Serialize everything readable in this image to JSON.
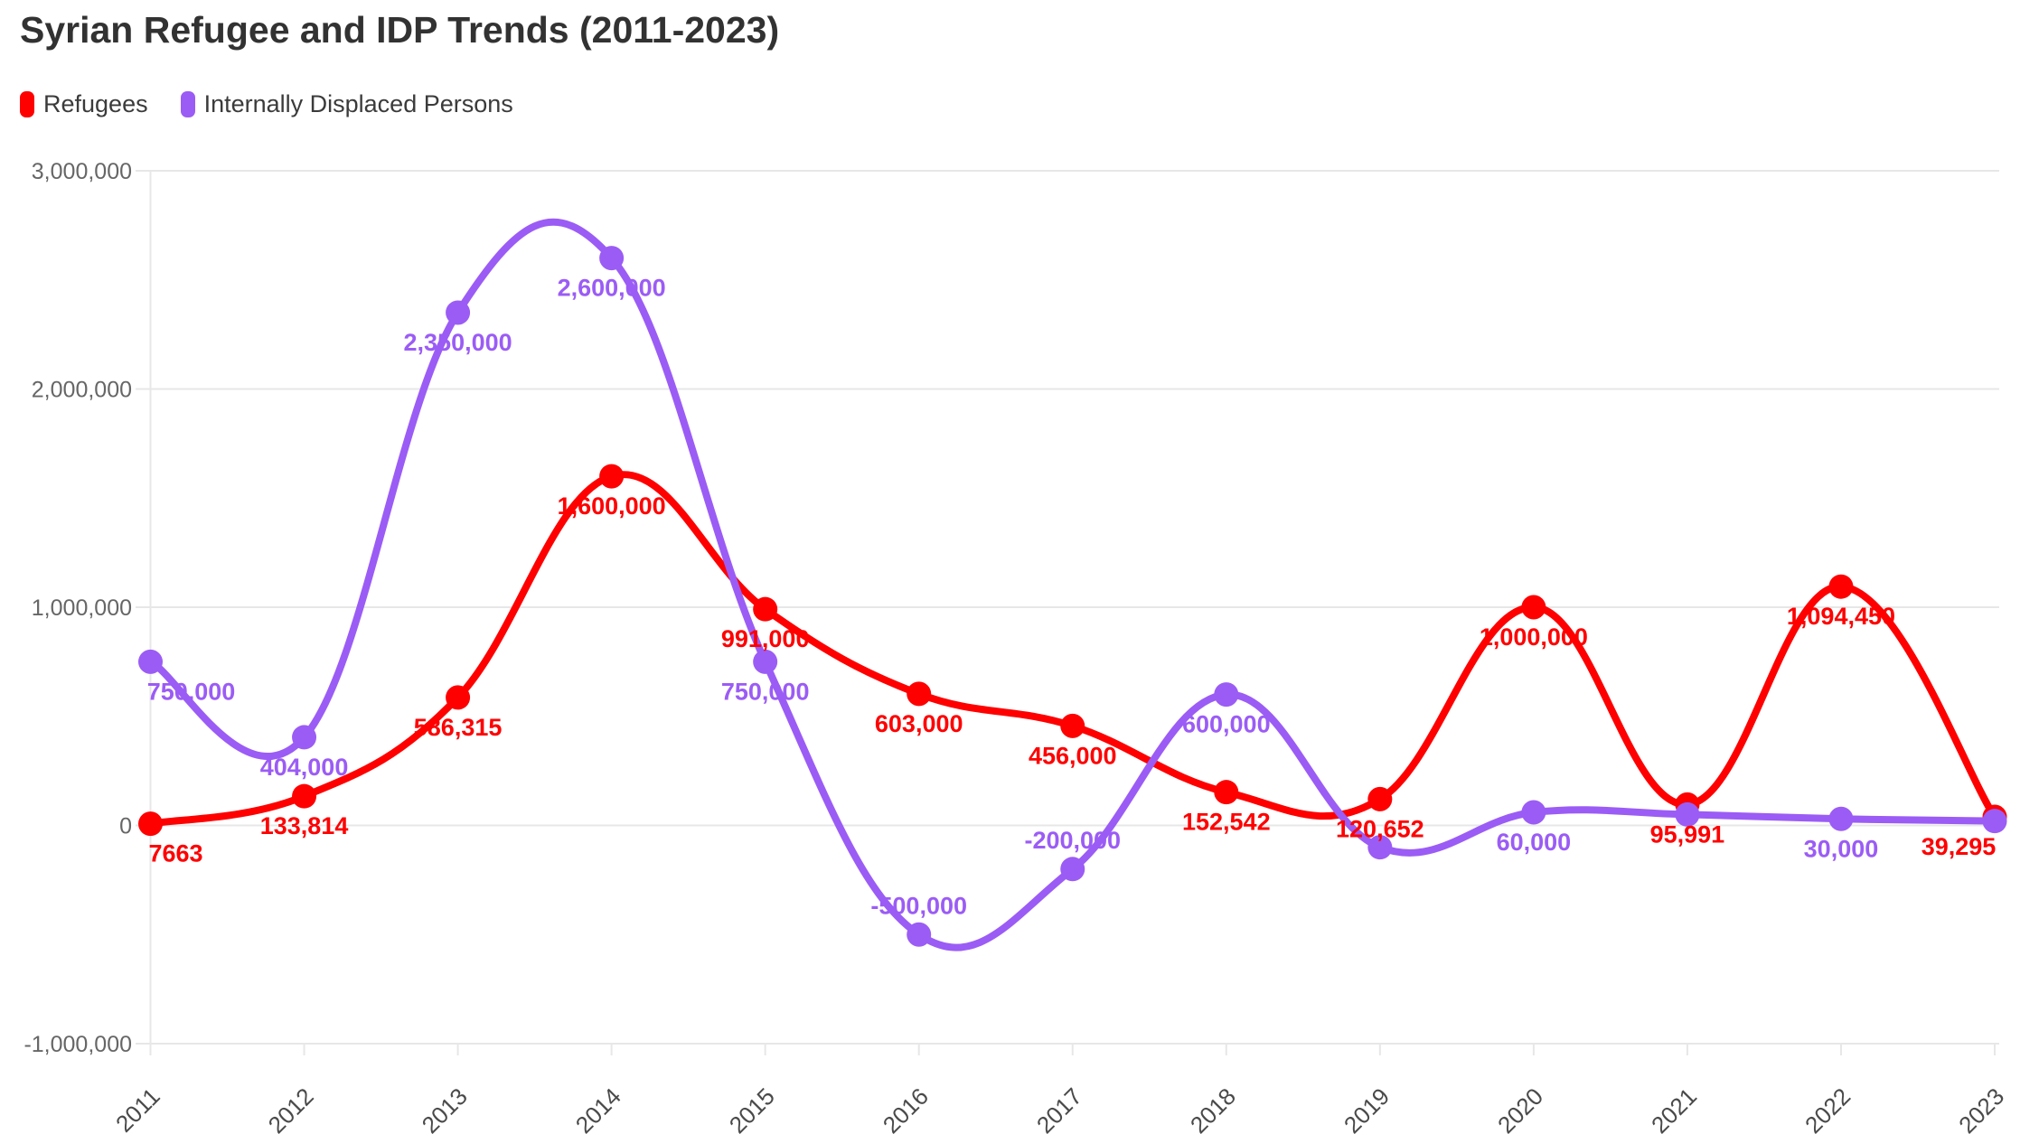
{
  "chart_data": {
    "type": "line",
    "title": "Syrian Refugee and IDP Trends (2011-2023)",
    "categories": [
      "2011",
      "2012",
      "2013",
      "2014",
      "2015",
      "2016",
      "2017",
      "2018",
      "2019",
      "2020",
      "2021",
      "2022",
      "2023"
    ],
    "xlabel": "",
    "ylabel": "",
    "ylim": [
      -1000000,
      3000000
    ],
    "grid": true,
    "legend_position": "top-left",
    "line_tension": 0.4,
    "y_ticks": {
      "values": [
        3000000,
        2000000,
        1000000,
        0,
        -1000000
      ],
      "labels": [
        "3,000,000",
        "2,000,000",
        "1,000,000",
        "0",
        "-1,000,000"
      ]
    },
    "series": [
      {
        "name": "Refugees",
        "color": "#fe0000",
        "values": [
          7663,
          133814,
          586315,
          1600000,
          991000,
          603000,
          456000,
          152542,
          120652,
          1000000,
          95991,
          1094450,
          39295
        ],
        "labels": [
          "7663",
          "133,814",
          "586,315",
          "1,600,000",
          "991,000",
          "603,000",
          "456,000",
          "152,542",
          "120,652",
          "1,000,000",
          "95,991",
          "1,094,450",
          "39,295"
        ],
        "label_side": [
          "below",
          "below",
          "below",
          "below",
          "below",
          "below",
          "below",
          "below",
          "below",
          "below",
          "below",
          "below",
          "below"
        ],
        "label_dx": [
          28,
          0,
          0,
          0,
          0,
          0,
          0,
          0,
          0,
          0,
          0,
          0,
          -40
        ]
      },
      {
        "name": "Internally Displaced Persons",
        "color": "#9b5cf5",
        "values": [
          750000,
          404000,
          2350000,
          2600000,
          750000,
          -500000,
          -200000,
          600000,
          -100000,
          60000,
          50000,
          30000,
          20000
        ],
        "labels": [
          "750,000",
          "404,000",
          "2,350,000",
          "2,600,000",
          "750,000",
          "-500,000",
          "-200,000",
          "600,000",
          "",
          "60,000",
          "",
          "30,000",
          ""
        ],
        "label_side": [
          "below",
          "below",
          "below",
          "below",
          "below",
          "above",
          "above",
          "below",
          "below",
          "below",
          "below",
          "below",
          "below"
        ],
        "label_dx": [
          45,
          0,
          0,
          0,
          0,
          0,
          0,
          0,
          0,
          0,
          0,
          0,
          0
        ]
      }
    ]
  },
  "style": {
    "grid_color": "#e7e7e7",
    "y_tick_color": "#666666",
    "x_tick_color": "#4a4a4a",
    "title_color": "#323232",
    "background": "#ffffff"
  }
}
